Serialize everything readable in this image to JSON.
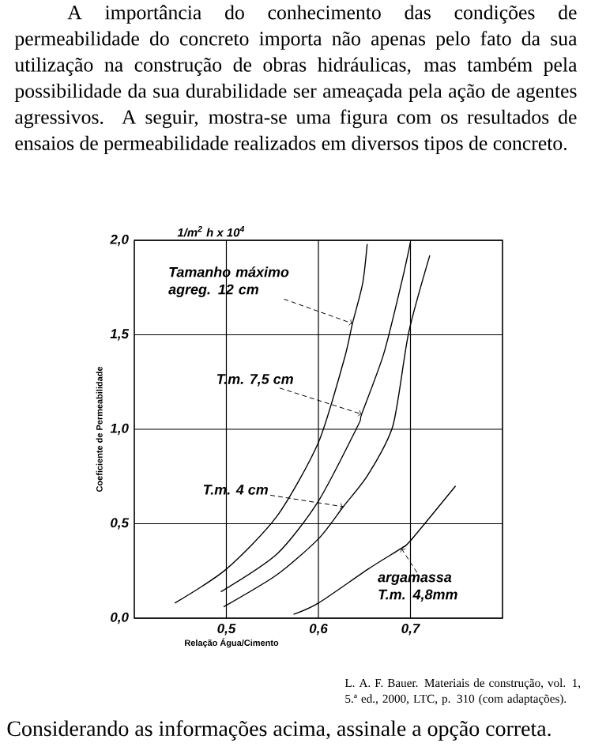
{
  "chart_data": {
    "type": "line",
    "xlabel": "Relação Água/Cimento",
    "ylabel": "Coeficiente de Permeabilidade",
    "annotations": [
      "A importância do conhecimento das condições de permeabilidade do concreto importa não apenas pelo fato da sua utilização na construção de obras hidráulicas, mas também pela possibilidade da sua durabilidade ser ameaçada pela ação de agentes agressivos. A seguir, mostra-se uma figura com os resultados de ensaios de permeabilidade realizados em diversos tipos de concreto.",
      "1/m$^{2}$ h x 10$^{4}$",
      "L. A. F. Bauer. Materiais de construção, vol. 1, 5.ª ed., 2000, LTC, p. 310 (com adaptações).",
      "Considerando as informações acima, assinale a opção correta.",
      {
        "text": "Tamanho máximo agreg. 12 cm",
        "x": 0.637,
        "y": 1.56
      },
      {
        "text": "T.m.   7,5 cm",
        "x": 0.647,
        "y": 1.08
      },
      {
        "text": "T.m.   4 cm",
        "x": 0.627,
        "y": 0.59
      },
      {
        "text": "argamassa T.m.   4,8mm",
        "x": 0.69,
        "y": 0.37
      }
    ],
    "series": [
      {
        "color": "#000000",
        "x": [
          0.444,
          0.5,
          0.555,
          0.6,
          0.628,
          0.637,
          0.648,
          0.653
        ],
        "values": [
          0.08,
          0.26,
          0.54,
          0.93,
          1.37,
          1.56,
          1.77,
          1.98
        ]
      },
      {
        "color": "#000000",
        "x": [
          0.494,
          0.555,
          0.6,
          0.643,
          0.647,
          0.671,
          0.691,
          0.7
        ],
        "values": [
          0.14,
          0.34,
          0.62,
          1.02,
          1.08,
          1.4,
          1.79,
          1.99
        ]
      },
      {
        "color": "#000000",
        "x": [
          0.497,
          0.555,
          0.6,
          0.627,
          0.654,
          0.681,
          0.698,
          0.721
        ],
        "values": [
          0.06,
          0.23,
          0.42,
          0.59,
          0.76,
          1.02,
          1.51,
          1.92
        ]
      },
      {
        "color": "#000000",
        "x": [
          0.573,
          0.6,
          0.654,
          0.69,
          0.7,
          0.749
        ],
        "values": [
          0.02,
          0.08,
          0.26,
          0.37,
          0.41,
          0.7
        ]
      }
    ],
    "xlim": [
      0.4,
      0.8
    ],
    "ylim": [
      0,
      2
    ],
    "xticks": [
      {
        "value": 0.5,
        "label": "0,5"
      },
      {
        "value": 0.6,
        "label": "0,6"
      },
      {
        "value": 0.7,
        "label": "0,7"
      }
    ],
    "yticks": [
      {
        "value": 0,
        "label": "0,0"
      },
      {
        "value": 0.5,
        "label": "0,5"
      },
      {
        "value": 1,
        "label": "1,0"
      },
      {
        "value": 1.5,
        "label": "1,5"
      },
      {
        "value": 2,
        "label": "2,0"
      }
    ],
    "grid": true,
    "marker": "none",
    "line_style": "solid"
  }
}
